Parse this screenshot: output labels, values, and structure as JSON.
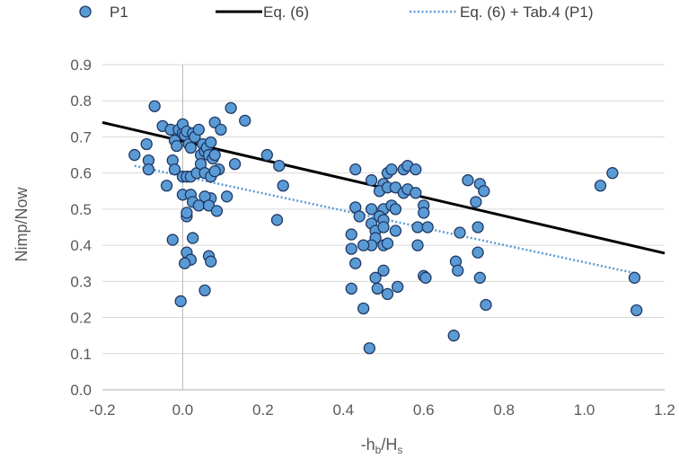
{
  "chart_data": {
    "type": "scatter",
    "xlabel_main": "-h",
    "xlabel_sub1": "b",
    "xlabel_mid": "/H",
    "xlabel_sub2": "s",
    "ylabel": "Nimp/Now",
    "xlim": [
      -0.2,
      1.2
    ],
    "ylim": [
      0.0,
      0.9
    ],
    "xticks": [
      -0.2,
      0.0,
      0.2,
      0.4,
      0.6,
      0.8,
      1.0,
      1.2
    ],
    "xtick_labels": [
      "-0.2",
      "0.0",
      "0.2",
      "0.4",
      "0.6",
      "0.8",
      "1.0",
      "1.2"
    ],
    "yticks": [
      0.0,
      0.1,
      0.2,
      0.3,
      0.4,
      0.5,
      0.6,
      0.7,
      0.8,
      0.9
    ],
    "ytick_labels": [
      "0.0",
      "0.1",
      "0.2",
      "0.3",
      "0.4",
      "0.5",
      "0.6",
      "0.7",
      "0.8",
      "0.9"
    ],
    "grid": "horizontal",
    "legend_position": "top",
    "legend": [
      "P1",
      "Eq. (6)",
      "Eq. (6) + Tab.4 (P1)"
    ],
    "colors": {
      "points": "#5b9bd5",
      "point_edge": "#1f3864",
      "eq6": "#000000",
      "eq6_tab4": "#5b9bd5",
      "grid": "#d9d9d9",
      "axis": "#bfbfbf"
    },
    "series": [
      {
        "name": "P1",
        "kind": "scatter",
        "points": [
          [
            -0.07,
            0.785
          ],
          [
            -0.05,
            0.73
          ],
          [
            -0.03,
            0.72
          ],
          [
            -0.02,
            0.69
          ],
          [
            -0.015,
            0.675
          ],
          [
            -0.01,
            0.72
          ],
          [
            0.0,
            0.71
          ],
          [
            0.0,
            0.735
          ],
          [
            0.005,
            0.705
          ],
          [
            0.01,
            0.715
          ],
          [
            0.015,
            0.68
          ],
          [
            0.02,
            0.67
          ],
          [
            0.025,
            0.71
          ],
          [
            0.03,
            0.7
          ],
          [
            0.04,
            0.72
          ],
          [
            0.045,
            0.65
          ],
          [
            0.05,
            0.68
          ],
          [
            0.055,
            0.66
          ],
          [
            0.06,
            0.67
          ],
          [
            0.065,
            0.65
          ],
          [
            0.07,
            0.685
          ],
          [
            0.075,
            0.64
          ],
          [
            0.08,
            0.74
          ],
          [
            0.08,
            0.65
          ],
          [
            0.09,
            0.61
          ],
          [
            0.095,
            0.72
          ],
          [
            0.12,
            0.78
          ],
          [
            0.13,
            0.625
          ],
          [
            0.155,
            0.745
          ],
          [
            -0.12,
            0.65
          ],
          [
            -0.09,
            0.68
          ],
          [
            -0.085,
            0.635
          ],
          [
            -0.085,
            0.61
          ],
          [
            -0.04,
            0.565
          ],
          [
            -0.025,
            0.635
          ],
          [
            -0.02,
            0.61
          ],
          [
            0.0,
            0.59
          ],
          [
            0.01,
            0.59
          ],
          [
            0.02,
            0.59
          ],
          [
            0.035,
            0.6
          ],
          [
            0.045,
            0.625
          ],
          [
            0.055,
            0.6
          ],
          [
            0.07,
            0.59
          ],
          [
            0.08,
            0.605
          ],
          [
            0.07,
            0.53
          ],
          [
            0.0,
            0.54
          ],
          [
            0.01,
            0.48
          ],
          [
            0.02,
            0.54
          ],
          [
            0.025,
            0.52
          ],
          [
            0.04,
            0.51
          ],
          [
            0.055,
            0.535
          ],
          [
            0.065,
            0.51
          ],
          [
            0.085,
            0.495
          ],
          [
            0.11,
            0.535
          ],
          [
            0.01,
            0.49
          ],
          [
            -0.025,
            0.415
          ],
          [
            0.025,
            0.42
          ],
          [
            0.01,
            0.38
          ],
          [
            0.02,
            0.36
          ],
          [
            0.005,
            0.35
          ],
          [
            0.065,
            0.37
          ],
          [
            0.07,
            0.355
          ],
          [
            -0.005,
            0.245
          ],
          [
            0.055,
            0.275
          ],
          [
            0.21,
            0.65
          ],
          [
            0.24,
            0.62
          ],
          [
            0.25,
            0.565
          ],
          [
            0.235,
            0.47
          ],
          [
            0.43,
            0.61
          ],
          [
            0.47,
            0.58
          ],
          [
            0.5,
            0.57
          ],
          [
            0.51,
            0.6
          ],
          [
            0.52,
            0.61
          ],
          [
            0.55,
            0.61
          ],
          [
            0.56,
            0.62
          ],
          [
            0.58,
            0.61
          ],
          [
            0.49,
            0.55
          ],
          [
            0.51,
            0.56
          ],
          [
            0.53,
            0.56
          ],
          [
            0.55,
            0.545
          ],
          [
            0.56,
            0.555
          ],
          [
            0.58,
            0.545
          ],
          [
            0.43,
            0.505
          ],
          [
            0.47,
            0.5
          ],
          [
            0.5,
            0.5
          ],
          [
            0.52,
            0.51
          ],
          [
            0.6,
            0.51
          ],
          [
            0.6,
            0.49
          ],
          [
            0.44,
            0.48
          ],
          [
            0.47,
            0.46
          ],
          [
            0.49,
            0.48
          ],
          [
            0.5,
            0.47
          ],
          [
            0.53,
            0.5
          ],
          [
            0.585,
            0.45
          ],
          [
            0.61,
            0.45
          ],
          [
            0.48,
            0.44
          ],
          [
            0.5,
            0.45
          ],
          [
            0.53,
            0.44
          ],
          [
            0.42,
            0.43
          ],
          [
            0.48,
            0.42
          ],
          [
            0.47,
            0.4
          ],
          [
            0.5,
            0.4
          ],
          [
            0.51,
            0.405
          ],
          [
            0.45,
            0.4
          ],
          [
            0.42,
            0.39
          ],
          [
            0.585,
            0.4
          ],
          [
            0.43,
            0.35
          ],
          [
            0.48,
            0.31
          ],
          [
            0.5,
            0.33
          ],
          [
            0.42,
            0.28
          ],
          [
            0.485,
            0.28
          ],
          [
            0.51,
            0.265
          ],
          [
            0.535,
            0.285
          ],
          [
            0.6,
            0.315
          ],
          [
            0.605,
            0.31
          ],
          [
            0.45,
            0.225
          ],
          [
            0.465,
            0.115
          ],
          [
            0.675,
            0.15
          ],
          [
            0.68,
            0.355
          ],
          [
            0.685,
            0.33
          ],
          [
            0.69,
            0.435
          ],
          [
            0.71,
            0.58
          ],
          [
            0.73,
            0.52
          ],
          [
            0.74,
            0.57
          ],
          [
            0.75,
            0.55
          ],
          [
            0.735,
            0.45
          ],
          [
            0.735,
            0.38
          ],
          [
            0.74,
            0.31
          ],
          [
            0.755,
            0.235
          ],
          [
            1.04,
            0.565
          ],
          [
            1.07,
            0.6
          ],
          [
            1.125,
            0.31
          ],
          [
            1.13,
            0.22
          ]
        ]
      },
      {
        "name": "Eq. (6)",
        "kind": "line",
        "points": [
          [
            -0.2,
            0.74
          ],
          [
            1.2,
            0.378
          ]
        ]
      },
      {
        "name": "Eq. (6) + Tab.4 (P1)",
        "kind": "dotted-line",
        "points": [
          [
            -0.12,
            0.62
          ],
          [
            1.13,
            0.322
          ]
        ]
      }
    ]
  }
}
